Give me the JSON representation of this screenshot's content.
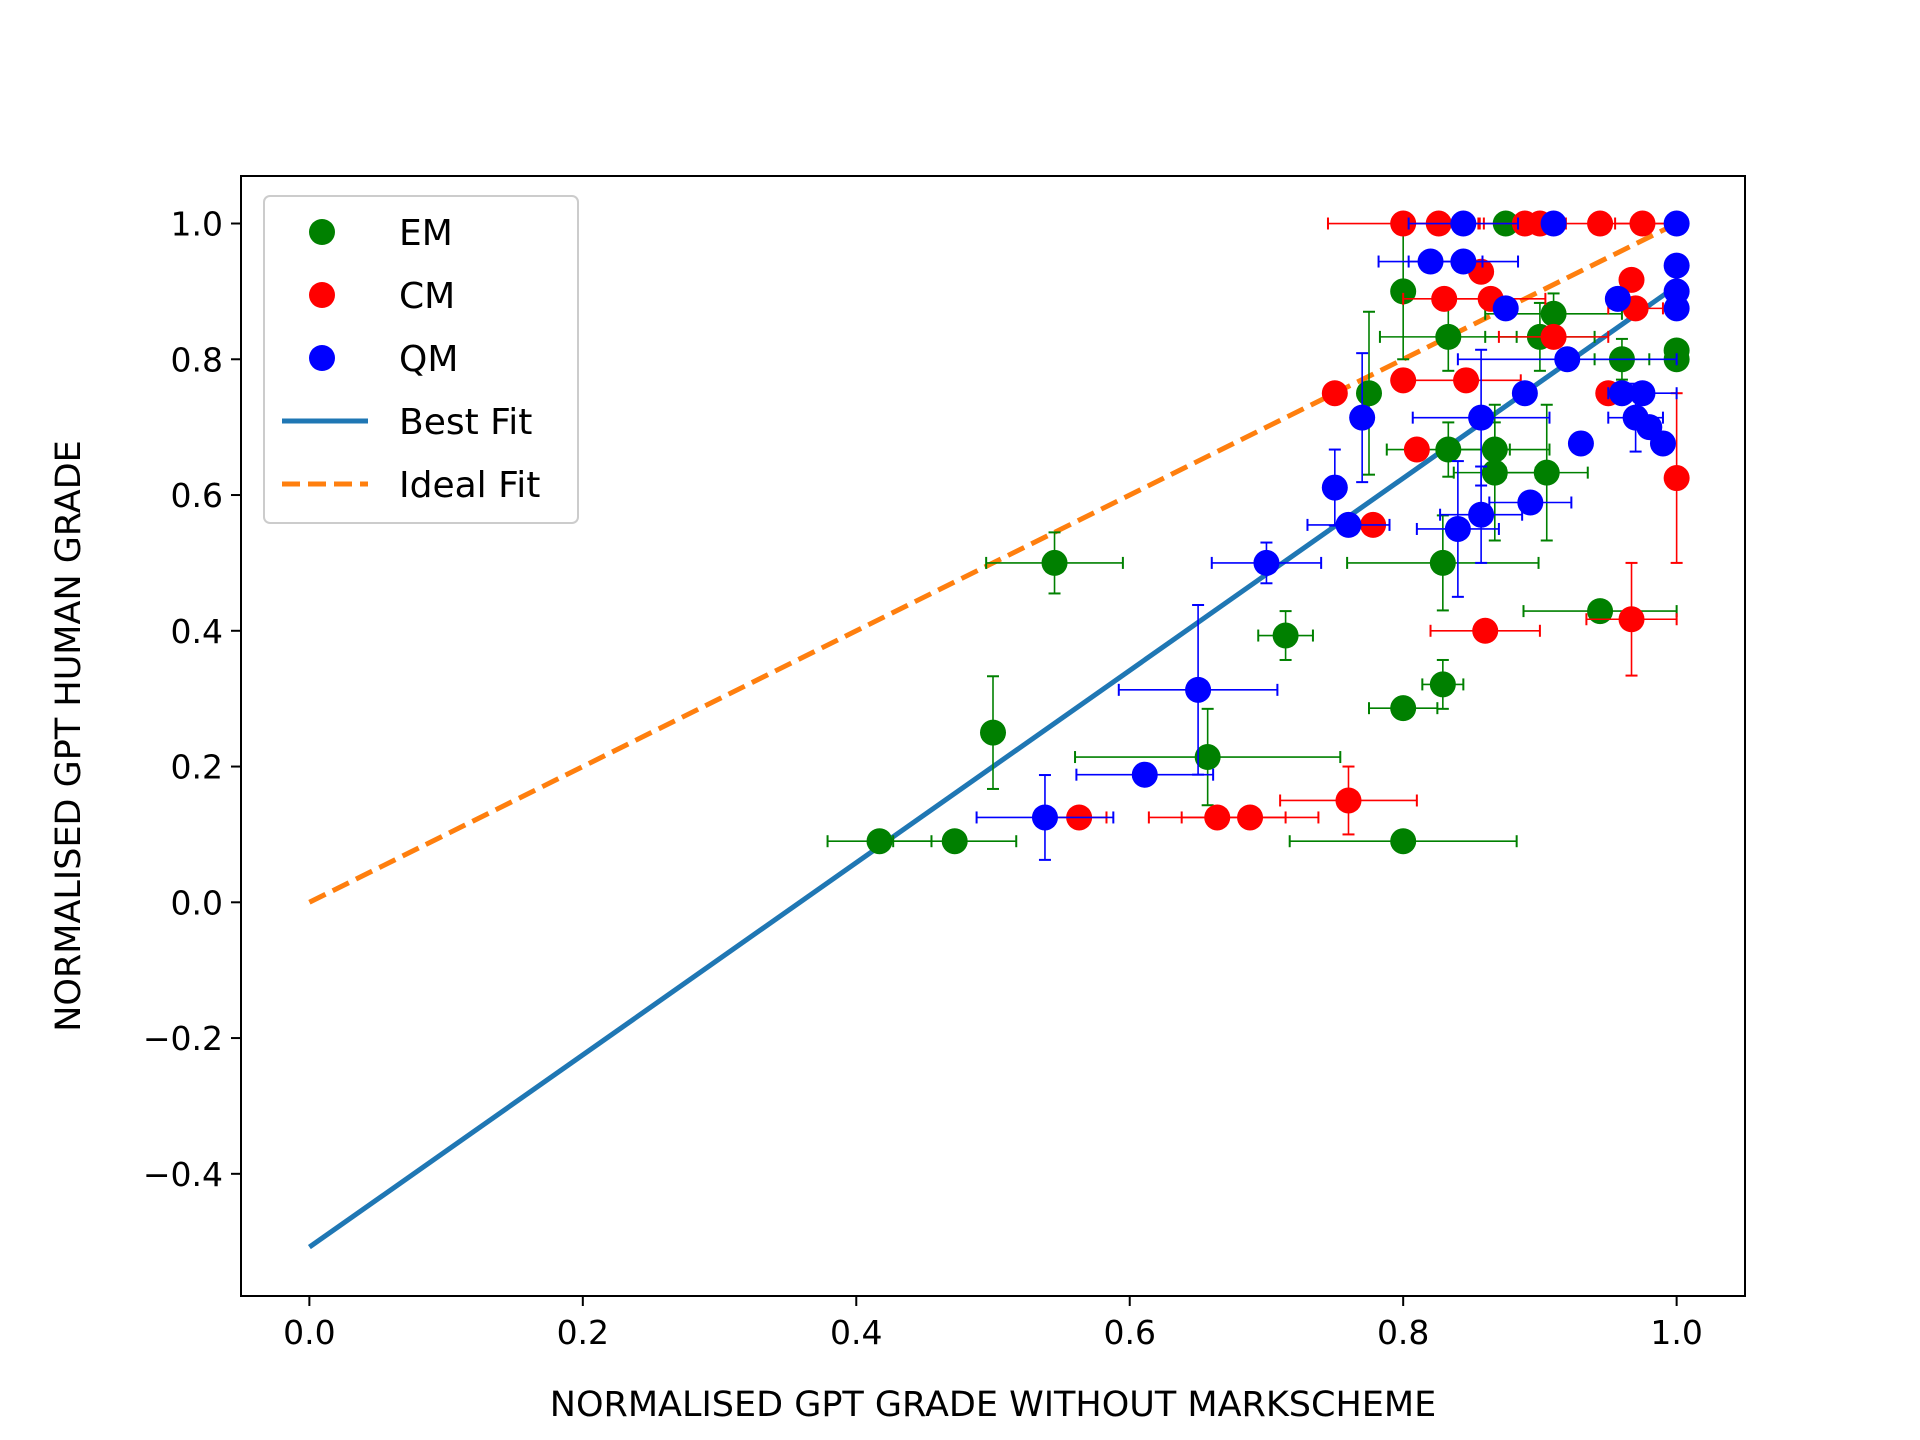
{
  "chart_data": {
    "type": "scatter",
    "xlabel": "NORMALISED GPT GRADE WITHOUT MARKSCHEME",
    "ylabel": "NORMALISED GPT HUMAN GRADE",
    "xlim": [
      -0.05,
      1.05
    ],
    "ylim": [
      -0.58,
      1.07
    ],
    "xticks": [
      "0.0",
      "0.2",
      "0.4",
      "0.6",
      "0.8",
      "1.0"
    ],
    "xtick_values": [
      0.0,
      0.2,
      0.4,
      0.6,
      0.8,
      1.0
    ],
    "yticks": [
      "−0.4",
      "−0.2",
      "0.0",
      "0.2",
      "0.4",
      "0.6",
      "0.8",
      "1.0"
    ],
    "ytick_values": [
      -0.4,
      -0.2,
      0.0,
      0.2,
      0.4,
      0.6,
      0.8,
      1.0
    ],
    "grid": false,
    "legend_position": "top-left",
    "series": [
      {
        "name": "EM",
        "color": "#008000",
        "points": [
          {
            "x": 0.545,
            "y": 0.5,
            "xerr": 0.05,
            "yerr": 0.045
          },
          {
            "x": 0.5,
            "y": 0.25,
            "xerr": 0.0,
            "yerr": 0.083
          },
          {
            "x": 0.417,
            "y": 0.09,
            "xerr": 0.038,
            "yerr": 0.0
          },
          {
            "x": 0.472,
            "y": 0.09,
            "xerr": 0.045,
            "yerr": 0.0
          },
          {
            "x": 0.657,
            "y": 0.214,
            "xerr": 0.097,
            "yerr": 0.071
          },
          {
            "x": 0.714,
            "y": 0.393,
            "xerr": 0.02,
            "yerr": 0.036
          },
          {
            "x": 0.8,
            "y": 0.286,
            "xerr": 0.025,
            "yerr": 0.0
          },
          {
            "x": 0.829,
            "y": 0.321,
            "xerr": 0.015,
            "yerr": 0.036
          },
          {
            "x": 0.829,
            "y": 0.5,
            "xerr": 0.07,
            "yerr": 0.07
          },
          {
            "x": 0.8,
            "y": 0.09,
            "xerr": 0.083,
            "yerr": 0.0
          },
          {
            "x": 0.833,
            "y": 0.667,
            "xerr": 0.045,
            "yerr": 0.04
          },
          {
            "x": 0.867,
            "y": 0.667,
            "xerr": 0.04,
            "yerr": 0.04
          },
          {
            "x": 0.867,
            "y": 0.633,
            "xerr": 0.03,
            "yerr": 0.1
          },
          {
            "x": 0.905,
            "y": 0.633,
            "xerr": 0.03,
            "yerr": 0.1
          },
          {
            "x": 0.775,
            "y": 0.75,
            "xerr": 0.0,
            "yerr": 0.12
          },
          {
            "x": 0.833,
            "y": 0.833,
            "xerr": 0.05,
            "yerr": 0.05
          },
          {
            "x": 0.8,
            "y": 0.9,
            "xerr": 0.0,
            "yerr": 0.1
          },
          {
            "x": 0.9,
            "y": 0.833,
            "xerr": 0.04,
            "yerr": 0.05
          },
          {
            "x": 0.91,
            "y": 0.867,
            "xerr": 0.05,
            "yerr": 0.03
          },
          {
            "x": 0.875,
            "y": 1.0,
            "xerr": 0.0,
            "yerr": 0.0
          },
          {
            "x": 0.96,
            "y": 0.8,
            "xerr": 0.02,
            "yerr": 0.03
          },
          {
            "x": 1.0,
            "y": 0.8,
            "xerr": 0.0,
            "yerr": 0.0
          },
          {
            "x": 1.0,
            "y": 0.813,
            "xerr": 0.0,
            "yerr": 0.0
          },
          {
            "x": 0.944,
            "y": 0.429,
            "xerr": 0.056,
            "yerr": 0.0
          }
        ]
      },
      {
        "name": "CM",
        "color": "#ff0000",
        "points": [
          {
            "x": 0.563,
            "y": 0.125,
            "xerr": 0.02,
            "yerr": 0.0
          },
          {
            "x": 0.664,
            "y": 0.125,
            "xerr": 0.05,
            "yerr": 0.0
          },
          {
            "x": 0.688,
            "y": 0.125,
            "xerr": 0.05,
            "yerr": 0.0
          },
          {
            "x": 0.76,
            "y": 0.15,
            "xerr": 0.05,
            "yerr": 0.05
          },
          {
            "x": 0.778,
            "y": 0.556,
            "xerr": 0.0,
            "yerr": 0.0
          },
          {
            "x": 0.86,
            "y": 0.4,
            "xerr": 0.04,
            "yerr": 0.0
          },
          {
            "x": 0.967,
            "y": 0.417,
            "xerr": 0.033,
            "yerr": 0.083
          },
          {
            "x": 1.0,
            "y": 0.625,
            "xerr": 0.0,
            "yerr": 0.125
          },
          {
            "x": 0.81,
            "y": 0.667,
            "xerr": 0.0,
            "yerr": 0.0
          },
          {
            "x": 0.75,
            "y": 0.75,
            "xerr": 0.0,
            "yerr": 0.0
          },
          {
            "x": 0.8,
            "y": 0.769,
            "xerr": 0.0,
            "yerr": 0.0
          },
          {
            "x": 0.846,
            "y": 0.769,
            "xerr": 0.04,
            "yerr": 0.0
          },
          {
            "x": 0.83,
            "y": 0.889,
            "xerr": 0.03,
            "yerr": 0.0
          },
          {
            "x": 0.864,
            "y": 0.889,
            "xerr": 0.04,
            "yerr": 0.0
          },
          {
            "x": 0.857,
            "y": 0.929,
            "xerr": 0.0,
            "yerr": 0.0
          },
          {
            "x": 0.91,
            "y": 0.833,
            "xerr": 0.04,
            "yerr": 0.0
          },
          {
            "x": 0.95,
            "y": 0.75,
            "xerr": 0.0,
            "yerr": 0.0
          },
          {
            "x": 0.967,
            "y": 0.917,
            "xerr": 0.0,
            "yerr": 0.0
          },
          {
            "x": 0.97,
            "y": 0.875,
            "xerr": 0.02,
            "yerr": 0.0
          },
          {
            "x": 0.8,
            "y": 1.0,
            "xerr": 0.055,
            "yerr": 0.0
          },
          {
            "x": 0.826,
            "y": 1.0,
            "xerr": 0.03,
            "yerr": 0.0
          },
          {
            "x": 0.889,
            "y": 1.0,
            "xerr": 0.03,
            "yerr": 0.0
          },
          {
            "x": 0.9,
            "y": 1.0,
            "xerr": 0.0,
            "yerr": 0.0
          },
          {
            "x": 0.944,
            "y": 1.0,
            "xerr": 0.056,
            "yerr": 0.0
          },
          {
            "x": 0.975,
            "y": 1.0,
            "xerr": 0.02,
            "yerr": 0.0
          }
        ]
      },
      {
        "name": "QM",
        "color": "#0000ff",
        "points": [
          {
            "x": 0.538,
            "y": 0.125,
            "xerr": 0.05,
            "yerr": 0.0625
          },
          {
            "x": 0.611,
            "y": 0.188,
            "xerr": 0.05,
            "yerr": 0.0
          },
          {
            "x": 0.65,
            "y": 0.313,
            "xerr": 0.058,
            "yerr": 0.125
          },
          {
            "x": 0.7,
            "y": 0.5,
            "xerr": 0.04,
            "yerr": 0.03
          },
          {
            "x": 0.76,
            "y": 0.556,
            "xerr": 0.03,
            "yerr": 0.0
          },
          {
            "x": 0.75,
            "y": 0.611,
            "xerr": 0.0,
            "yerr": 0.056
          },
          {
            "x": 0.77,
            "y": 0.714,
            "xerr": 0.0,
            "yerr": 0.095
          },
          {
            "x": 0.84,
            "y": 0.55,
            "xerr": 0.03,
            "yerr": 0.1
          },
          {
            "x": 0.857,
            "y": 0.571,
            "xerr": 0.03,
            "yerr": 0.071
          },
          {
            "x": 0.857,
            "y": 0.714,
            "xerr": 0.05,
            "yerr": 0.1
          },
          {
            "x": 0.889,
            "y": 0.75,
            "xerr": 0.0,
            "yerr": 0.0
          },
          {
            "x": 0.893,
            "y": 0.589,
            "xerr": 0.03,
            "yerr": 0.0
          },
          {
            "x": 0.92,
            "y": 0.8,
            "xerr": 0.08,
            "yerr": 0.0
          },
          {
            "x": 0.93,
            "y": 0.676,
            "xerr": 0.0,
            "yerr": 0.0
          },
          {
            "x": 0.957,
            "y": 0.889,
            "xerr": 0.0,
            "yerr": 0.0
          },
          {
            "x": 0.96,
            "y": 0.75,
            "xerr": 0.0,
            "yerr": 0.0
          },
          {
            "x": 0.975,
            "y": 0.75,
            "xerr": 0.025,
            "yerr": 0.0
          },
          {
            "x": 0.97,
            "y": 0.714,
            "xerr": 0.02,
            "yerr": 0.05
          },
          {
            "x": 0.98,
            "y": 0.7,
            "xerr": 0.0,
            "yerr": 0.0
          },
          {
            "x": 0.99,
            "y": 0.676,
            "xerr": 0.0,
            "yerr": 0.0
          },
          {
            "x": 0.875,
            "y": 0.875,
            "xerr": 0.0,
            "yerr": 0.0
          },
          {
            "x": 0.82,
            "y": 0.944,
            "xerr": 0.038,
            "yerr": 0.0
          },
          {
            "x": 0.844,
            "y": 0.944,
            "xerr": 0.04,
            "yerr": 0.0
          },
          {
            "x": 0.844,
            "y": 1.0,
            "xerr": 0.04,
            "yerr": 0.0
          },
          {
            "x": 0.91,
            "y": 1.0,
            "xerr": 0.0,
            "yerr": 0.0
          },
          {
            "x": 1.0,
            "y": 1.0,
            "xerr": 0.0,
            "yerr": 0.0
          },
          {
            "x": 1.0,
            "y": 0.938,
            "xerr": 0.0,
            "yerr": 0.0
          },
          {
            "x": 1.0,
            "y": 0.9,
            "xerr": 0.0,
            "yerr": 0.0
          },
          {
            "x": 1.0,
            "y": 0.875,
            "xerr": 0.0,
            "yerr": 0.0
          }
        ]
      }
    ],
    "lines": [
      {
        "name": "Best Fit",
        "color": "#1f77b4",
        "style": "solid",
        "x": [
          0.0,
          1.0
        ],
        "y": [
          -0.508,
          0.908
        ]
      },
      {
        "name": "Ideal Fit",
        "color": "#ff7f0e",
        "style": "dashed",
        "x": [
          0.0,
          1.0
        ],
        "y": [
          0.0,
          1.0
        ]
      }
    ]
  }
}
